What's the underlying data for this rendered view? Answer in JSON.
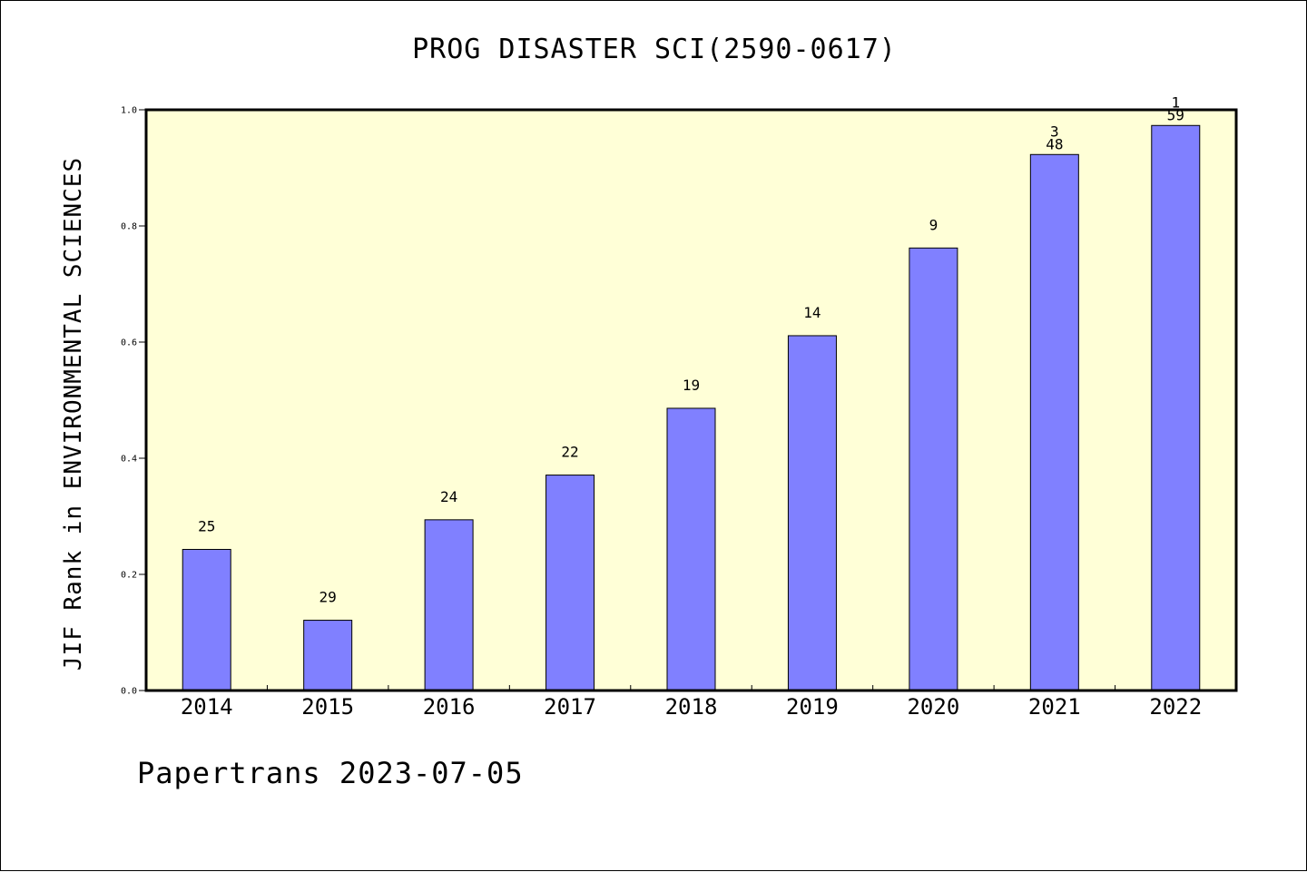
{
  "title": "PROG DISASTER SCI(2590-0617)",
  "footer": "Papertrans 2023-07-05",
  "colors": {
    "plot_background": "#ffffd7",
    "bar_fill": "#8080ff",
    "bar_stroke": "#000000"
  },
  "chart_data": {
    "type": "bar",
    "title": "PROG DISASTER SCI(2590-0617)",
    "xlabel": "",
    "ylabel": "JIF Rank in ENVIRONMENTAL SCIENCES",
    "categories": [
      "2014",
      "2015",
      "2016",
      "2017",
      "2018",
      "2019",
      "2020",
      "2021",
      "2022"
    ],
    "values": [
      0.243,
      0.121,
      0.294,
      0.371,
      0.486,
      0.611,
      0.762,
      0.923,
      0.973
    ],
    "bar_labels": [
      "25",
      "29",
      "24",
      "22",
      "19",
      "14",
      "9",
      "3\n48",
      "1\n59"
    ],
    "ylim": [
      0.0,
      1.0
    ],
    "yticks": [
      "0.0",
      "0.2",
      "0.4",
      "0.6",
      "0.8",
      "1.0"
    ],
    "grid": false,
    "legend": "none"
  }
}
